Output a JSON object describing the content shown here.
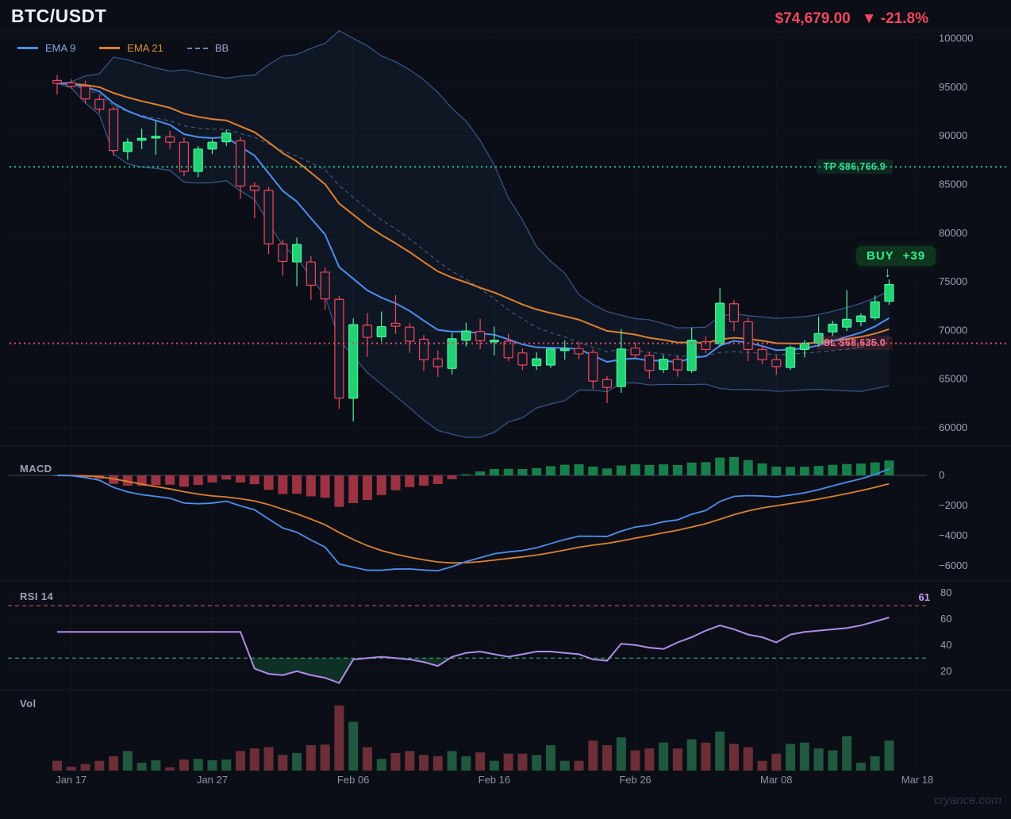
{
  "header": {
    "symbol": "BTC/USDT",
    "price": "$74,679.00",
    "change": "▼ -21.8%"
  },
  "legend": [
    {
      "label": "EMA 9",
      "color": "#4e8ef0",
      "text_color": "#86a9e0",
      "style": "solid"
    },
    {
      "label": "EMA 21",
      "color": "#e0802e",
      "text_color": "#e0913f",
      "style": "solid"
    },
    {
      "label": "BB",
      "color": "#6c84b4",
      "text_color": "#93a7cc",
      "style": "dashed"
    }
  ],
  "levels": {
    "tp": {
      "label": "TP $86,766.9",
      "value": 86766.9,
      "color": "#1fc878"
    },
    "sl": {
      "label": "SL $68,635.0",
      "value": 68635.0,
      "color": "#d6516a"
    }
  },
  "signal_badge": {
    "text": "BUY",
    "value": "+39",
    "arrow": "↓",
    "color": "#2ef08c"
  },
  "panels": {
    "macd": {
      "label": "MACD",
      "ticks": [
        0,
        -2000,
        -4000,
        -6000
      ]
    },
    "rsi": {
      "label": "RSI 14",
      "value": "61",
      "ticks": [
        80,
        60,
        40,
        20
      ],
      "overbought": 70,
      "oversold": 30
    },
    "volume": {
      "label": "Vol"
    }
  },
  "price_axis": {
    "ticks": [
      100000,
      95000,
      90000,
      85000,
      80000,
      75000,
      70000,
      65000,
      60000
    ]
  },
  "x_axis": [
    {
      "i": 1,
      "label": "Jan 17"
    },
    {
      "i": 11,
      "label": "Jan 27"
    },
    {
      "i": 21,
      "label": "Feb 06"
    },
    {
      "i": 31,
      "label": "Feb 16"
    },
    {
      "i": 41,
      "label": "Feb 26"
    },
    {
      "i": 51,
      "label": "Mar 08"
    },
    {
      "i": 61,
      "label": "Mar 18"
    }
  ],
  "watermark": "cryance.com",
  "colors": {
    "up": "#21d173",
    "up_edge": "#4cf39a",
    "down": "#f4465d",
    "down_fill": "#131826",
    "ema9": "#4e8ef0",
    "ema21": "#e0802e",
    "bb": "#3c619c",
    "bb_mid": "#5f7da8",
    "macd_line": "#4e8ef0",
    "macd_signal": "#e0802e",
    "hist_pos": "#17804a",
    "hist_neg": "#9d3342",
    "rsi_line": "#b18ce8",
    "vol_up": "#20593f",
    "vol_down": "#6c2e37",
    "axis_text": "#99a1af",
    "grid": "#141b29"
  },
  "chart_data": {
    "type": "candlestick+indicators",
    "symbol": "BTC/USDT",
    "last_price": 74679.0,
    "change_pct": -21.8,
    "start_date": "Jan 16",
    "interval": "1d",
    "ylim": [
      60000,
      100000
    ],
    "indicators": {
      "ema": [
        9,
        21
      ],
      "bollinger": {
        "period": 20,
        "mult": 2
      },
      "macd": [
        12,
        26,
        9
      ],
      "rsi_period": 14
    },
    "take_profit": 86766.9,
    "stop_loss": 68635.0,
    "candles": [
      [
        95650,
        96200,
        94200,
        95350,
        15
      ],
      [
        95400,
        95800,
        94800,
        95050,
        6
      ],
      [
        95050,
        95600,
        93300,
        93750,
        10
      ],
      [
        93700,
        94100,
        92300,
        92700,
        15
      ],
      [
        92700,
        93000,
        87900,
        88450,
        22
      ],
      [
        88350,
        89700,
        87500,
        89300,
        30
      ],
      [
        89500,
        90700,
        88600,
        89700,
        12
      ],
      [
        89750,
        91500,
        88000,
        89900,
        16
      ],
      [
        89850,
        90500,
        88600,
        89300,
        5
      ],
      [
        89300,
        89800,
        85800,
        86300,
        17
      ],
      [
        86300,
        88900,
        85700,
        88600,
        18
      ],
      [
        88600,
        89600,
        88100,
        89300,
        16
      ],
      [
        89350,
        90600,
        88900,
        90250,
        17
      ],
      [
        89450,
        89800,
        83500,
        84800,
        30
      ],
      [
        84800,
        85200,
        81500,
        84350,
        34
      ],
      [
        84350,
        84700,
        77800,
        78850,
        36
      ],
      [
        78850,
        79300,
        75600,
        77050,
        24
      ],
      [
        77000,
        79500,
        74500,
        78800,
        27
      ],
      [
        77000,
        77600,
        73100,
        74600,
        39
      ],
      [
        75950,
        76400,
        72100,
        73200,
        40
      ],
      [
        73150,
        73500,
        61900,
        63000,
        100
      ],
      [
        63000,
        71200,
        60600,
        70550,
        75
      ],
      [
        70500,
        71750,
        67250,
        69250,
        36
      ],
      [
        69300,
        71900,
        68800,
        70350,
        18
      ],
      [
        70700,
        73600,
        69600,
        70400,
        27
      ],
      [
        70300,
        70700,
        67650,
        68850,
        30
      ],
      [
        69050,
        69500,
        65800,
        66950,
        24
      ],
      [
        67050,
        67900,
        65200,
        66250,
        22
      ],
      [
        66050,
        69700,
        65450,
        69100,
        30
      ],
      [
        68950,
        70750,
        68300,
        69900,
        22
      ],
      [
        69850,
        71150,
        68050,
        68900,
        28
      ],
      [
        68900,
        70350,
        67400,
        68950,
        15
      ],
      [
        68850,
        69600,
        66800,
        67150,
        26
      ],
      [
        67650,
        68100,
        65900,
        66400,
        26
      ],
      [
        66350,
        67700,
        65900,
        67050,
        24
      ],
      [
        66400,
        68150,
        66100,
        68050,
        39
      ],
      [
        68000,
        68950,
        66950,
        68050,
        15
      ],
      [
        68100,
        68650,
        67000,
        67550,
        15
      ],
      [
        67700,
        68050,
        63950,
        64750,
        46
      ],
      [
        64900,
        65250,
        62500,
        64100,
        39
      ],
      [
        64200,
        70100,
        63550,
        68050,
        51
      ],
      [
        68150,
        68750,
        67100,
        67450,
        31
      ],
      [
        67400,
        67750,
        65000,
        65850,
        34
      ],
      [
        65950,
        67450,
        65600,
        67000,
        43
      ],
      [
        67000,
        67400,
        65200,
        65900,
        34
      ],
      [
        65850,
        70250,
        65600,
        68950,
        48
      ],
      [
        68800,
        69350,
        67600,
        68000,
        43
      ],
      [
        68600,
        74300,
        68300,
        72750,
        60
      ],
      [
        72700,
        73100,
        69900,
        70850,
        41
      ],
      [
        70850,
        71250,
        66800,
        68000,
        36
      ],
      [
        68000,
        68350,
        66500,
        66950,
        15
      ],
      [
        66950,
        67350,
        65400,
        66250,
        26
      ],
      [
        66150,
        68400,
        65900,
        68200,
        41
      ],
      [
        68000,
        68950,
        67200,
        68650,
        43
      ],
      [
        68650,
        71400,
        68300,
        69650,
        34
      ],
      [
        69800,
        70950,
        69400,
        70600,
        31
      ],
      [
        70300,
        74100,
        69900,
        71100,
        53
      ],
      [
        70850,
        71700,
        70400,
        71450,
        12
      ],
      [
        71250,
        73550,
        71000,
        72900,
        22
      ],
      [
        72950,
        75200,
        72600,
        74679,
        46
      ]
    ],
    "rsi": [
      50,
      50,
      50,
      50,
      50,
      50,
      50,
      50,
      50,
      50,
      50,
      50,
      50,
      50,
      22,
      18,
      17,
      20,
      17,
      15,
      11,
      29,
      30,
      31,
      30,
      29,
      27,
      24,
      31,
      34,
      35,
      33,
      31,
      33,
      35,
      35,
      34,
      33,
      29,
      28,
      41,
      40,
      38,
      37,
      42,
      46,
      51,
      55,
      52,
      48,
      46,
      42,
      48,
      50,
      51,
      52,
      53,
      55,
      58,
      61
    ]
  }
}
